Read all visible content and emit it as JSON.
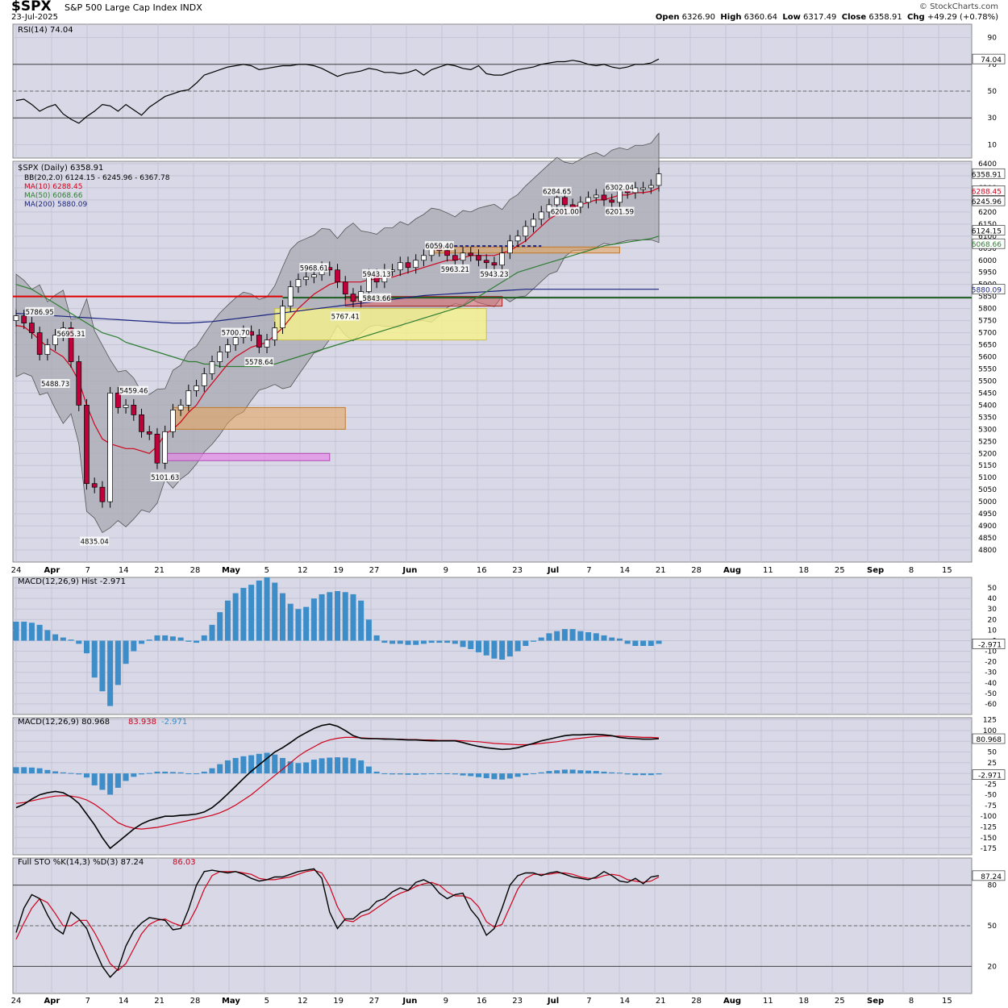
{
  "header": {
    "ticker": "$SPX",
    "name": "S&P 500 Large Cap Index",
    "exchange": "INDX",
    "date": "23-Jul-2025",
    "brand": "© StockCharts.com",
    "open_label": "Open",
    "open": "6326.90",
    "high_label": "High",
    "high": "6360.64",
    "low_label": "Low",
    "low": "6317.49",
    "close_label": "Close",
    "close": "6358.91",
    "chg_label": "Chg",
    "chg": "+49.29 (+0.78%)"
  },
  "colors": {
    "panel_bg": "#d8d8e6",
    "up": "#ffffff",
    "down": "#c0003a",
    "ma10": "#d0021b",
    "ma50": "#2e7d32",
    "ma200": "#1a237e",
    "hist": "#3d8ec8"
  },
  "chart_data": [
    {
      "type": "line",
      "title": "RSI(14) 74.04",
      "ylim": [
        0,
        100
      ],
      "ticks": [
        "90",
        "70",
        "50",
        "30",
        "10"
      ],
      "reference_lines": [
        70,
        50,
        30
      ],
      "last_value_label": "74.04",
      "values": [
        43,
        44,
        40,
        35,
        38,
        40,
        33,
        29,
        26,
        31,
        35,
        40,
        39,
        35,
        40,
        36,
        32,
        38,
        42,
        46,
        48,
        50,
        51,
        56,
        62,
        64,
        66,
        68,
        69,
        70,
        69,
        66,
        67,
        68,
        69,
        69,
        70,
        70,
        69,
        67,
        64,
        61,
        63,
        64,
        65,
        67,
        66,
        64,
        64,
        63,
        64,
        66,
        62,
        66,
        68,
        70,
        69,
        67,
        66,
        69,
        63,
        62,
        62,
        64,
        66,
        67,
        68,
        70,
        71,
        72,
        72,
        73,
        72,
        70,
        69,
        70,
        68,
        67,
        68,
        70,
        70,
        71,
        74
      ]
    },
    {
      "type": "candlestick",
      "title": "$SPX (Daily) 6358.91",
      "legend": [
        {
          "name": "BB(20,2.0) 6124.15 - 6245.96 - 6367.78",
          "color": "#000000"
        },
        {
          "name": "MA(10) 6288.45",
          "color": "#d0021b"
        },
        {
          "name": "MA(50) 6068.66",
          "color": "#2e7d32"
        },
        {
          "name": "MA(200) 5880.09",
          "color": "#1a237e"
        }
      ],
      "ylim": [
        4750,
        6410
      ],
      "ticks": [
        6400,
        6350,
        6300,
        6250,
        6200,
        6150,
        6100,
        6050,
        6000,
        5950,
        5900,
        5850,
        5800,
        5750,
        5700,
        5650,
        5600,
        5550,
        5500,
        5450,
        5400,
        5350,
        5300,
        5250,
        5200,
        5150,
        5100,
        5050,
        5000,
        4950,
        4900,
        4850,
        4800
      ],
      "value_boxes": [
        "6358.91",
        "6288.45",
        "6245.96",
        "6124.15",
        "6068.66",
        "5880.09"
      ],
      "horizontal_lines": [
        5845,
        5850
      ],
      "annotations": [
        "6284.65",
        "6302.04",
        "6201.00",
        "6201.59",
        "6059.40",
        "5963.21",
        "5943.23",
        "5943.13",
        "5968.61",
        "5843.66",
        "5767.41",
        "5700.70",
        "5578.64",
        "5786.95",
        "5695.31",
        "5488.73",
        "5459.46",
        "5101.63",
        "4835.04"
      ],
      "x_labels": [
        "24",
        "Apr",
        "7",
        "14",
        "21",
        "28",
        "May",
        "5",
        "12",
        "19",
        "27",
        "Jun",
        "9",
        "16",
        "23",
        "Jul",
        "7",
        "14",
        "21",
        "28",
        "Aug",
        "11",
        "18",
        "25",
        "Sep",
        "8",
        "15"
      ],
      "closes": [
        5770,
        5740,
        5700,
        5610,
        5650,
        5690,
        5720,
        5580,
        5400,
        5075,
        5060,
        5000,
        5450,
        5390,
        5400,
        5360,
        5290,
        5280,
        5160,
        5290,
        5380,
        5400,
        5460,
        5480,
        5530,
        5580,
        5620,
        5650,
        5680,
        5705,
        5690,
        5640,
        5670,
        5720,
        5810,
        5890,
        5920,
        5930,
        5940,
        5970,
        5960,
        5910,
        5860,
        5830,
        5870,
        5940,
        5910,
        5960,
        5960,
        5990,
        5970,
        6000,
        6020,
        6050,
        6040,
        6020,
        6000,
        6030,
        6020,
        6000,
        5990,
        5980,
        6030,
        6080,
        6100,
        6140,
        6170,
        6200,
        6230,
        6260,
        6230,
        6220,
        6240,
        6260,
        6270,
        6250,
        6240,
        6290,
        6280,
        6300,
        6300,
        6310,
        6358
      ],
      "ma10": [
        5730,
        5725,
        5700,
        5670,
        5640,
        5620,
        5600,
        5560,
        5500,
        5400,
        5320,
        5260,
        5240,
        5230,
        5220,
        5220,
        5210,
        5200,
        5230,
        5280,
        5300,
        5330,
        5370,
        5400,
        5450,
        5490,
        5530,
        5570,
        5600,
        5620,
        5640,
        5650,
        5660,
        5690,
        5720,
        5760,
        5800,
        5830,
        5860,
        5880,
        5900,
        5910,
        5910,
        5910,
        5910,
        5920,
        5920,
        5930,
        5930,
        5940,
        5950,
        5960,
        5970,
        5980,
        5990,
        6000,
        6000,
        6010,
        6020,
        6020,
        6020,
        6020,
        6030,
        6040,
        6060,
        6080,
        6110,
        6140,
        6170,
        6190,
        6210,
        6220,
        6230,
        6240,
        6250,
        6250,
        6260,
        6270,
        6270,
        6280,
        6280,
        6285,
        6300
      ],
      "ma50": [
        5900,
        5890,
        5880,
        5860,
        5840,
        5820,
        5800,
        5780,
        5760,
        5740,
        5720,
        5700,
        5690,
        5680,
        5660,
        5650,
        5640,
        5630,
        5620,
        5610,
        5600,
        5590,
        5580,
        5580,
        5570,
        5570,
        5560,
        5560,
        5560,
        5560,
        5560,
        5560,
        5570,
        5570,
        5580,
        5590,
        5600,
        5610,
        5620,
        5630,
        5640,
        5650,
        5660,
        5670,
        5680,
        5690,
        5700,
        5710,
        5720,
        5730,
        5740,
        5750,
        5760,
        5770,
        5780,
        5790,
        5800,
        5810,
        5830,
        5850,
        5870,
        5890,
        5910,
        5930,
        5950,
        5960,
        5970,
        5980,
        5990,
        6000,
        6010,
        6020,
        6030,
        6040,
        6050,
        6060,
        6065,
        6070,
        6075,
        6080,
        6085,
        6090,
        6100
      ],
      "ma200": [
        5780,
        5778,
        5776,
        5774,
        5772,
        5770,
        5768,
        5766,
        5764,
        5762,
        5760,
        5758,
        5756,
        5754,
        5752,
        5750,
        5748,
        5746,
        5744,
        5742,
        5740,
        5740,
        5740,
        5742,
        5744,
        5746,
        5750,
        5754,
        5758,
        5762,
        5766,
        5770,
        5774,
        5778,
        5782,
        5786,
        5790,
        5794,
        5798,
        5802,
        5806,
        5810,
        5814,
        5818,
        5822,
        5826,
        5830,
        5834,
        5838,
        5842,
        5846,
        5850,
        5854,
        5856,
        5858,
        5860,
        5862,
        5864,
        5866,
        5868,
        5870,
        5872,
        5874,
        5876,
        5878,
        5880,
        5880,
        5880,
        5880,
        5880,
        5880,
        5880,
        5880,
        5880,
        5880,
        5880,
        5880,
        5880,
        5880,
        5880,
        5880,
        5880,
        5880
      ]
    },
    {
      "type": "bar",
      "title": "MACD(12,26,9) Hist -2.971",
      "ylim": [
        -70,
        60
      ],
      "ticks": [
        "50",
        "40",
        "30",
        "20",
        "10",
        "0",
        "-10",
        "-20",
        "-30",
        "-40",
        "-50",
        "-60"
      ],
      "last_value_label": "-2.971",
      "values": [
        18,
        18,
        17,
        15,
        10,
        6,
        3,
        1,
        -3,
        -12,
        -35,
        -48,
        -62,
        -42,
        -22,
        -10,
        -3,
        1,
        5,
        5,
        4,
        3,
        -1,
        -2,
        5,
        15,
        27,
        38,
        45,
        50,
        53,
        57,
        60,
        55,
        45,
        35,
        30,
        32,
        40,
        44,
        46,
        47,
        46,
        44,
        38,
        20,
        5,
        -2,
        -3,
        -3,
        -4,
        -4,
        -3,
        -2,
        -2,
        -2,
        -3,
        -6,
        -8,
        -11,
        -14,
        -17,
        -18,
        -15,
        -10,
        -5,
        -1,
        3,
        7,
        9,
        11,
        11,
        9,
        8,
        7,
        5,
        3,
        2,
        -3,
        -5,
        -5,
        -5,
        -3
      ]
    },
    {
      "type": "line",
      "title": "MACD(12,26,9) 80.968, 83.938, -2.971",
      "legend": [
        {
          "name": "MACD(12,26,9) 80.968",
          "color": "#000000"
        },
        {
          "name": "83.938",
          "color": "#d0021b"
        },
        {
          "name": "-2.971",
          "color": "#3d8ec8"
        }
      ],
      "ylim": [
        -190,
        130
      ],
      "ticks": [
        "125",
        "100",
        "75",
        "50",
        "25",
        "0",
        "-25",
        "-50",
        "-75",
        "-100",
        "-125",
        "-150",
        "-175"
      ],
      "value_boxes": [
        "80.968",
        "-2.971"
      ],
      "macd": [
        -80,
        -72,
        -60,
        -50,
        -45,
        -42,
        -45,
        -55,
        -70,
        -95,
        -120,
        -150,
        -175,
        -160,
        -145,
        -130,
        -118,
        -110,
        -105,
        -100,
        -100,
        -98,
        -97,
        -95,
        -90,
        -80,
        -65,
        -48,
        -30,
        -12,
        5,
        20,
        35,
        50,
        60,
        72,
        85,
        95,
        105,
        112,
        115,
        110,
        100,
        88,
        82,
        81,
        81,
        80,
        80,
        79,
        78,
        78,
        77,
        76,
        76,
        76,
        76,
        72,
        67,
        63,
        60,
        58,
        56,
        57,
        60,
        65,
        70,
        76,
        80,
        84,
        88,
        90,
        90,
        91,
        91,
        90,
        88,
        84,
        82,
        81,
        80,
        80,
        81
      ],
      "signal": [
        -70,
        -68,
        -64,
        -60,
        -56,
        -53,
        -52,
        -53,
        -56,
        -62,
        -72,
        -85,
        -100,
        -115,
        -123,
        -128,
        -130,
        -128,
        -126,
        -122,
        -118,
        -114,
        -110,
        -106,
        -102,
        -98,
        -92,
        -84,
        -74,
        -62,
        -50,
        -35,
        -20,
        -5,
        10,
        25,
        40,
        52,
        62,
        72,
        78,
        82,
        84,
        84,
        83,
        82,
        81,
        81,
        80,
        80,
        79,
        79,
        78,
        78,
        77,
        77,
        77,
        76,
        75,
        74,
        72,
        70,
        69,
        68,
        67,
        67,
        68,
        70,
        72,
        74,
        77,
        80,
        82,
        84,
        86,
        87,
        87,
        87,
        86,
        85,
        84,
        84,
        83
      ]
    },
    {
      "type": "line",
      "title": "Full STO %K(14,3) %D(3) 87.24, 86.03",
      "legend": [
        {
          "name": "Full STO %K(14,3) %D(3) 87.24",
          "color": "#000000"
        },
        {
          "name": "86.03",
          "color": "#d0021b"
        }
      ],
      "ylim": [
        0,
        100
      ],
      "ticks": [
        "80",
        "50",
        "20"
      ],
      "reference_lines": [
        80,
        50,
        20
      ],
      "value_boxes": [
        "87.24"
      ],
      "k": [
        45,
        63,
        73,
        70,
        58,
        48,
        44,
        60,
        55,
        48,
        33,
        20,
        12,
        18,
        35,
        46,
        52,
        56,
        55,
        54,
        47,
        48,
        62,
        80,
        90,
        91,
        90,
        89,
        90,
        88,
        85,
        83,
        84,
        86,
        86,
        88,
        90,
        91,
        92,
        85,
        60,
        48,
        55,
        55,
        60,
        62,
        68,
        70,
        75,
        78,
        76,
        82,
        84,
        81,
        74,
        70,
        73,
        74,
        62,
        55,
        43,
        48,
        63,
        80,
        87,
        89,
        89,
        87,
        89,
        90,
        88,
        86,
        85,
        84,
        86,
        90,
        87,
        83,
        82,
        85,
        81,
        86,
        87
      ],
      "d": [
        40,
        52,
        63,
        70,
        67,
        59,
        50,
        50,
        54,
        54,
        45,
        34,
        22,
        17,
        22,
        33,
        44,
        51,
        54,
        55,
        52,
        50,
        52,
        63,
        77,
        87,
        90,
        90,
        90,
        89,
        88,
        85,
        84,
        84,
        85,
        86,
        88,
        90,
        91,
        89,
        79,
        64,
        54,
        53,
        57,
        59,
        63,
        67,
        71,
        74,
        76,
        79,
        81,
        82,
        80,
        75,
        72,
        72,
        70,
        64,
        53,
        49,
        51,
        64,
        77,
        85,
        88,
        88,
        88,
        89,
        89,
        88,
        86,
        85,
        85,
        87,
        88,
        87,
        84,
        83,
        82,
        83,
        86
      ]
    }
  ]
}
